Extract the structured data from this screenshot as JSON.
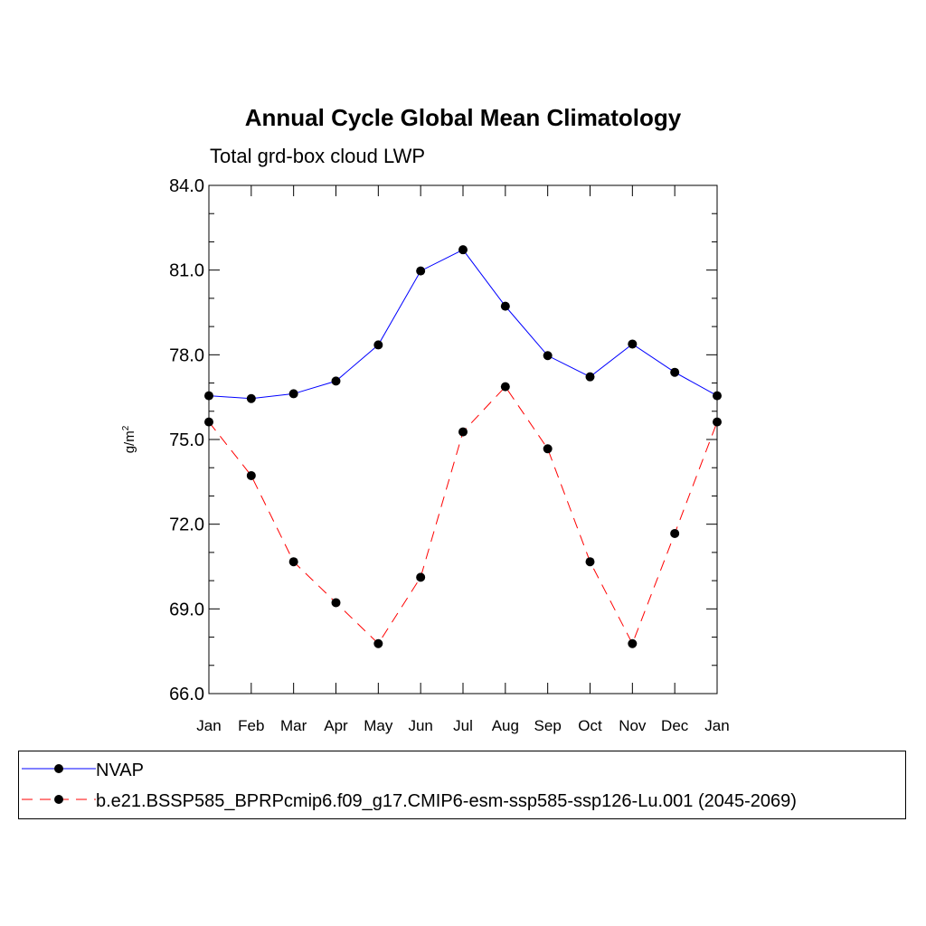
{
  "chart_data": {
    "type": "line",
    "title": "Annual Cycle Global Mean Climatology",
    "subtitle": "Total grd-box cloud LWP",
    "ylabel": "g/m",
    "ylabel_sup": "2",
    "xlabel": "",
    "categories": [
      "Jan",
      "Feb",
      "Mar",
      "Apr",
      "May",
      "Jun",
      "Jul",
      "Aug",
      "Sep",
      "Oct",
      "Nov",
      "Dec",
      "Jan"
    ],
    "ylim": [
      66.0,
      84.0
    ],
    "yticks": [
      66.0,
      69.0,
      72.0,
      75.0,
      78.0,
      81.0,
      84.0
    ],
    "ytick_labels": [
      "66.0",
      "69.0",
      "72.0",
      "75.0",
      "78.0",
      "81.0",
      "84.0"
    ],
    "grid": false,
    "series": [
      {
        "name": "NVAP",
        "color": "#0000ff",
        "dash": "solid",
        "values": [
          76.55,
          76.45,
          76.62,
          77.07,
          78.35,
          80.97,
          81.72,
          79.72,
          77.97,
          77.22,
          78.38,
          77.38,
          76.55
        ]
      },
      {
        "name": "b.e21.BSSP585_BPRPcmip6.f09_g17.CMIP6-esm-ssp585-ssp126-Lu.001 (2045-2069)",
        "color": "#ff0000",
        "dash": "dashed",
        "values": [
          75.62,
          73.72,
          70.67,
          69.22,
          67.77,
          70.12,
          75.27,
          76.87,
          74.67,
          70.67,
          67.77,
          71.67,
          75.62
        ]
      }
    ],
    "legend_position": "bottom"
  }
}
